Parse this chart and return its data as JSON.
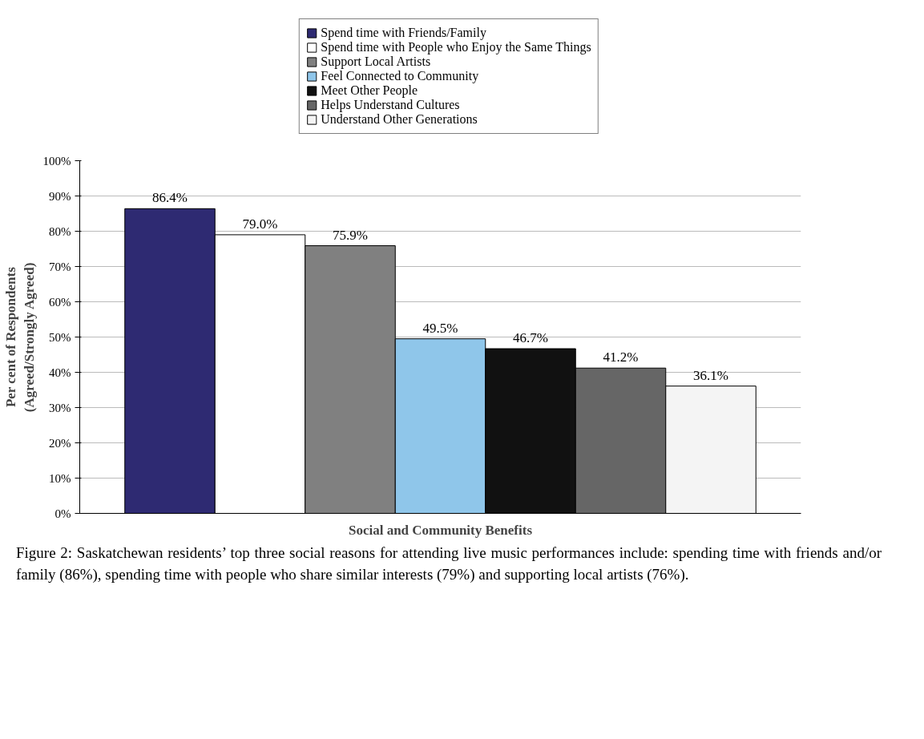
{
  "chart_data": {
    "type": "bar",
    "xlabel": "Social and Community Benefits",
    "ylabel": "Per cent of Respondents\n(Agreed/Strongly Agreed)",
    "categories": [
      null
    ],
    "series": [
      {
        "name": "Spend time with Friends/Family",
        "color": "#2e2a72",
        "values": [
          86.4
        ],
        "value_labels": [
          "86.4%"
        ]
      },
      {
        "name": "Spend time with People who Enjoy the Same Things",
        "color": "#ffffff",
        "values": [
          79.0
        ],
        "value_labels": [
          "79.0%"
        ]
      },
      {
        "name": "Support Local Artists",
        "color": "#808080",
        "values": [
          75.9
        ],
        "value_labels": [
          "75.9%"
        ]
      },
      {
        "name": "Feel Connected to Community",
        "color": "#8fc6ea",
        "values": [
          49.5
        ],
        "value_labels": [
          "49.5%"
        ]
      },
      {
        "name": "Meet Other People",
        "color": "#111111",
        "values": [
          46.7
        ],
        "value_labels": [
          "46.7%"
        ]
      },
      {
        "name": "Helps Understand Cultures",
        "color": "#666666",
        "values": [
          41.2
        ],
        "value_labels": [
          "41.2%"
        ]
      },
      {
        "name": "Understand Other Generations",
        "color": "#f4f4f4",
        "values": [
          36.1
        ],
        "value_labels": [
          "36.1%"
        ]
      }
    ],
    "ylim": [
      0,
      100
    ],
    "yticks": [
      {
        "value": 0,
        "label": "0%"
      },
      {
        "value": 10,
        "label": "10%"
      },
      {
        "value": 20,
        "label": "20%"
      },
      {
        "value": 30,
        "label": "30%"
      },
      {
        "value": 40,
        "label": "40%"
      },
      {
        "value": 50,
        "label": "50%"
      },
      {
        "value": 60,
        "label": "60%"
      },
      {
        "value": 70,
        "label": "70%"
      },
      {
        "value": 80,
        "label": "80%"
      },
      {
        "value": 90,
        "label": "90%"
      },
      {
        "value": 100,
        "label": "100%"
      }
    ],
    "grid": "y",
    "legend": "top",
    "annotations": [
      "Figure 2: Saskatchewan residents’ top three social reasons for attending live music performances include: spending time with friends and/or family (86%), spending time with people who share similar interests (79%) and supporting local artists (76%)."
    ]
  }
}
